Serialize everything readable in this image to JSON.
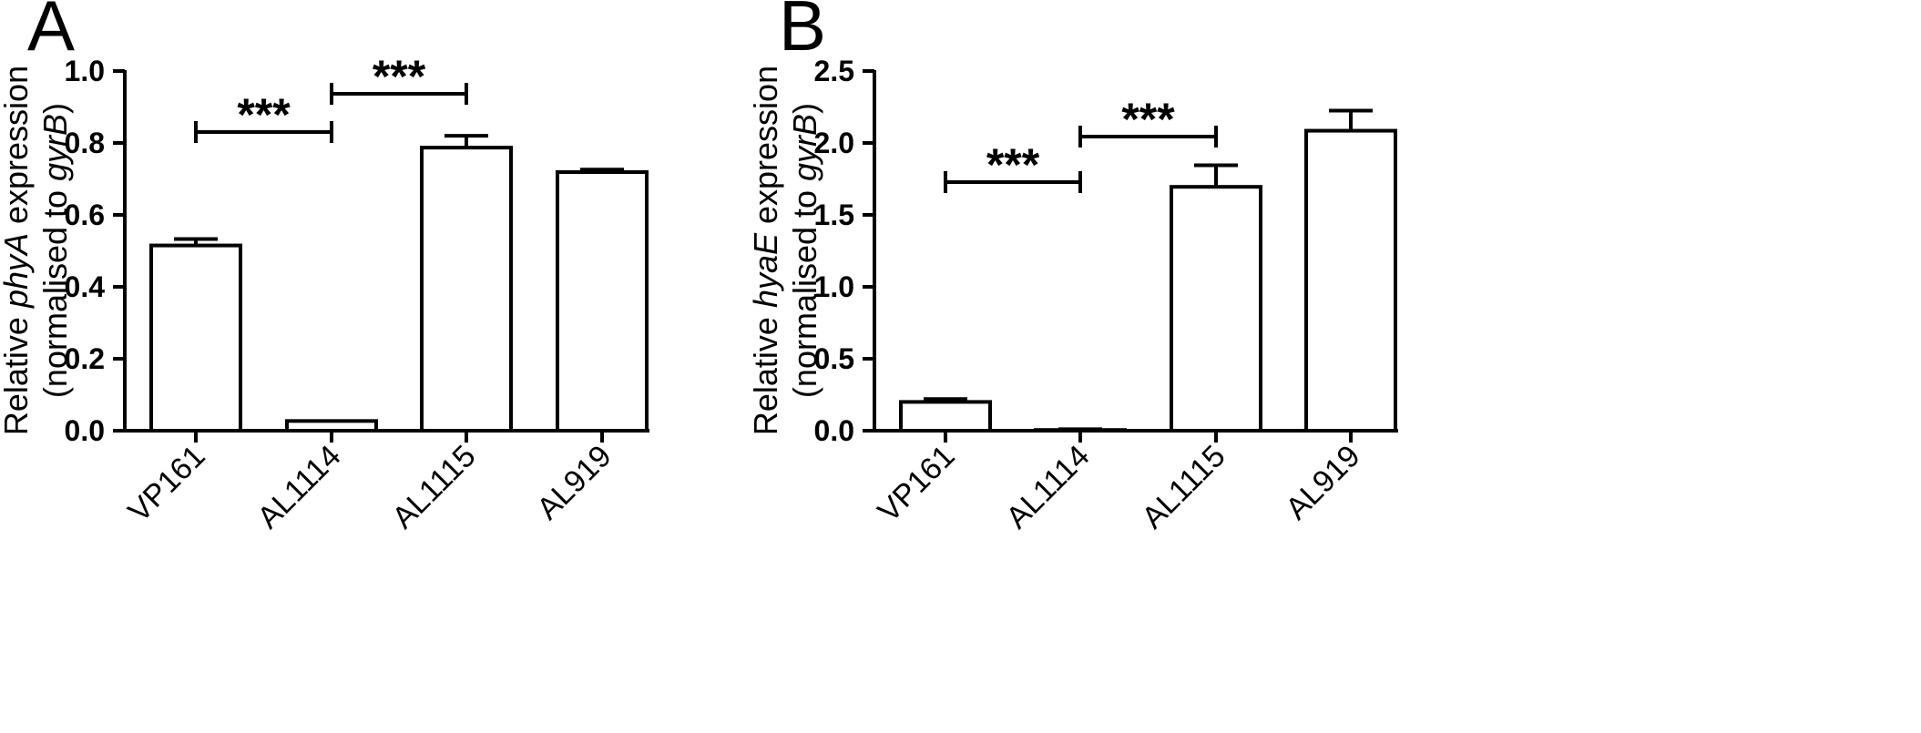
{
  "chart_data": [
    {
      "type": "bar",
      "panel_label": "A",
      "categories": [
        "VP161",
        "AL1114",
        "AL1115",
        "AL919"
      ],
      "values": [
        0.515,
        0.027,
        0.787,
        0.719
      ],
      "errors": [
        0.018,
        0.0,
        0.033,
        0.007
      ],
      "ylabel": {
        "line1": {
          "prefix": "Relative ",
          "gene": "phyA",
          "suffix": " expression"
        },
        "line2": {
          "prefix": "(normalised to  ",
          "gene": "gyrB",
          "suffix": ")"
        }
      },
      "ylim": [
        0,
        1.0
      ],
      "yticks": [
        "0.0",
        "0.2",
        "0.4",
        "0.6",
        "0.8",
        "1.0"
      ],
      "significance": [
        {
          "from": 0,
          "to": 1,
          "label": "***"
        },
        {
          "from": 1,
          "to": 2,
          "label": "***"
        }
      ]
    },
    {
      "type": "bar",
      "panel_label": "B",
      "categories": [
        "VP161",
        "AL1114",
        "AL1115",
        "AL919"
      ],
      "values": [
        0.2,
        0.005,
        1.695,
        2.085
      ],
      "errors": [
        0.02,
        0.005,
        0.15,
        0.14
      ],
      "ylabel": {
        "line1": {
          "prefix": "Relative ",
          "gene": "hyaE",
          "suffix": " expression"
        },
        "line2": {
          "prefix": "(normalised to  ",
          "gene": "gyrB",
          "suffix": ")"
        }
      },
      "ylim": [
        0,
        2.5
      ],
      "yticks": [
        "0.0",
        "0.5",
        "1.0",
        "1.5",
        "2.0",
        "2.5"
      ],
      "significance": [
        {
          "from": 0,
          "to": 1,
          "label": "***"
        },
        {
          "from": 1,
          "to": 2,
          "label": "***"
        }
      ]
    }
  ]
}
